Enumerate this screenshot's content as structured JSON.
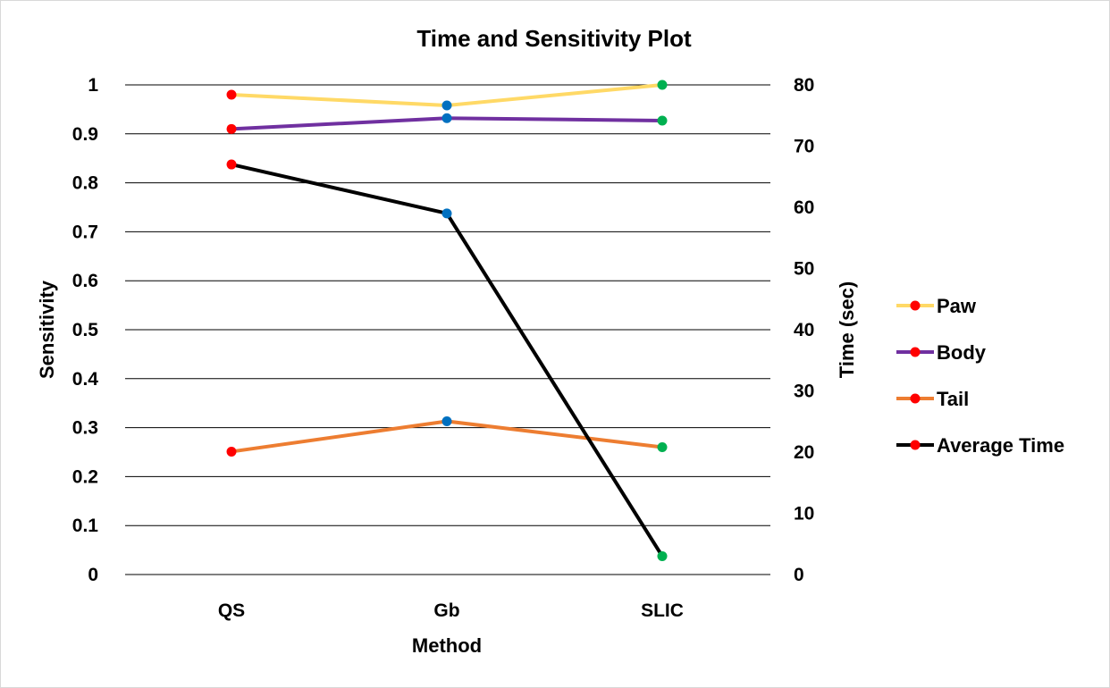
{
  "chart_data": {
    "type": "line",
    "title": "Time and Sensitivity Plot",
    "xlabel": "Method",
    "ylabel": "Sensitivity",
    "y2label": "Time (sec)",
    "categories": [
      "QS",
      "Gb",
      "SLIC"
    ],
    "ylim": [
      0,
      1
    ],
    "yticks": [
      "0",
      "0.1",
      "0.2",
      "0.3",
      "0.4",
      "0.5",
      "0.6",
      "0.7",
      "0.8",
      "0.9",
      "1"
    ],
    "y2lim": [
      0,
      80
    ],
    "y2ticks": [
      "0",
      "10",
      "20",
      "30",
      "40",
      "50",
      "60",
      "70",
      "80"
    ],
    "grid": true,
    "legend_position": "right",
    "series": [
      {
        "name": "Paw",
        "axis": "left",
        "color": "#ffd966",
        "values": [
          0.98,
          0.958,
          1.0
        ],
        "marker_colors": [
          "#ff0000",
          "#0070c0",
          "#00b050"
        ]
      },
      {
        "name": "Body",
        "axis": "left",
        "color": "#7030a0",
        "values": [
          0.91,
          0.932,
          0.927
        ],
        "marker_colors": [
          "#ff0000",
          "#0070c0",
          "#00b050"
        ]
      },
      {
        "name": "Tail",
        "axis": "left",
        "color": "#ed7d31",
        "values": [
          0.251,
          0.313,
          0.26
        ],
        "marker_colors": [
          "#ff0000",
          "#0070c0",
          "#00b050"
        ]
      },
      {
        "name": "Average Time",
        "axis": "right",
        "color": "#000000",
        "values": [
          67,
          59,
          3
        ],
        "marker_colors": [
          "#ff0000",
          "#0070c0",
          "#00b050"
        ]
      }
    ],
    "legend_marker_color": "#ff0000"
  }
}
